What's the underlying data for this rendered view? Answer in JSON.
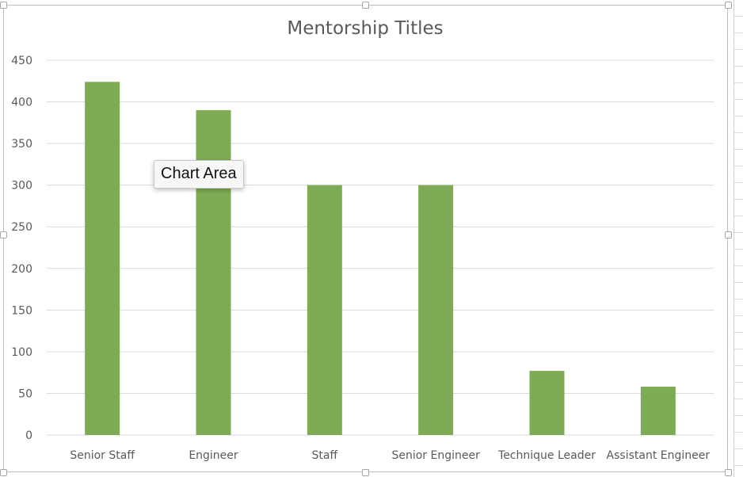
{
  "tooltip": {
    "text": "Chart Area"
  },
  "colors": {
    "bar": "#7eab55",
    "grid": "#d9d9d9",
    "axis_text": "#595959",
    "title_text": "#595959"
  },
  "chart_data": {
    "type": "bar",
    "title": "Mentorship Titles",
    "xlabel": "",
    "ylabel": "",
    "categories": [
      "Senior Staff",
      "Engineer",
      "Staff",
      "Senior Engineer",
      "Technique Leader",
      "Assistant Engineer"
    ],
    "values": [
      424,
      390,
      300,
      300,
      77,
      58
    ],
    "ylim": [
      0,
      450
    ],
    "yticks": [
      0,
      50,
      100,
      150,
      200,
      250,
      300,
      350,
      400,
      450
    ],
    "grid": true,
    "legend": "none"
  }
}
